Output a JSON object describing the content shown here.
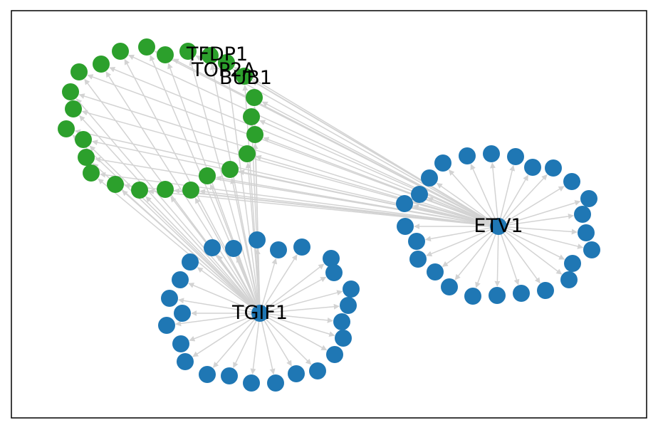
{
  "graph": {
    "hubs": [
      {
        "id": "etv1",
        "label": "ETV1"
      },
      {
        "id": "tgif1",
        "label": "TGIF1"
      }
    ],
    "labeled_targets": [
      {
        "id": "tfdp1",
        "label": "TFDP1"
      },
      {
        "id": "top2a",
        "label": "TOP2A"
      },
      {
        "id": "bub1",
        "label": "BUB1"
      }
    ],
    "colors": {
      "hub_cluster": "#1f77b4",
      "shared_targets": "#2ca02c",
      "edges": "#d3d3d3",
      "frame": "#000000",
      "label": "#000000"
    }
  }
}
